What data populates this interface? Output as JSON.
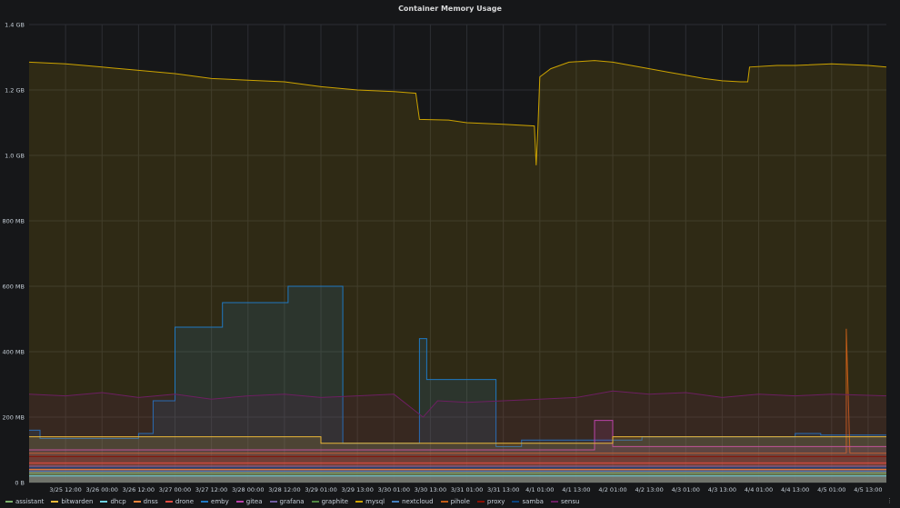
{
  "panel": {
    "title": "Container Memory Usage"
  },
  "colors": {
    "background": "#161719",
    "grid": "#2c2e33",
    "axis_text": "#c7d0d9"
  },
  "chart_data": {
    "type": "line",
    "title": "Container Memory Usage",
    "xlabel": "",
    "ylabel": "",
    "fill": true,
    "grid": true,
    "legend_placement": "bottom",
    "x_ticks": [
      "3/25 12:00",
      "3/26 00:00",
      "3/26 12:00",
      "3/27 00:00",
      "3/27 12:00",
      "3/28 00:00",
      "3/28 12:00",
      "3/29 01:00",
      "3/29 13:00",
      "3/30 01:00",
      "3/30 13:00",
      "3/31 01:00",
      "3/31 13:00",
      "4/1 01:00",
      "4/1 13:00",
      "4/2 01:00",
      "4/2 13:00",
      "4/3 01:00",
      "4/3 13:00",
      "4/4 01:00",
      "4/4 13:00",
      "4/5 01:00",
      "4/5 13:00"
    ],
    "y_ticks": [
      {
        "label": "0 B",
        "value": 0
      },
      {
        "label": "200 MB",
        "value": 200
      },
      {
        "label": "400 MB",
        "value": 400
      },
      {
        "label": "600 MB",
        "value": 600
      },
      {
        "label": "800 MB",
        "value": 800
      },
      {
        "label": "1.0 GB",
        "value": 1000
      },
      {
        "label": "1.2 GB",
        "value": 1200
      },
      {
        "label": "1.4 GB",
        "value": 1400
      }
    ],
    "ylim": [
      0,
      1400
    ],
    "x_range": [
      0,
      23.5
    ],
    "series": [
      {
        "name": "assistant",
        "color": "#7eb26d",
        "points": [
          [
            0,
            30
          ],
          [
            23.5,
            30
          ]
        ]
      },
      {
        "name": "bitwarden",
        "color": "#eab839",
        "points": [
          [
            0,
            140
          ],
          [
            8,
            140
          ],
          [
            8,
            120
          ],
          [
            16,
            120
          ],
          [
            16,
            140
          ],
          [
            23.5,
            140
          ]
        ]
      },
      {
        "name": "dhcp",
        "color": "#6ed0e0",
        "points": [
          [
            0,
            20
          ],
          [
            23.5,
            20
          ]
        ]
      },
      {
        "name": "dnss",
        "color": "#ef843c",
        "points": [
          [
            0,
            40
          ],
          [
            23.5,
            40
          ]
        ]
      },
      {
        "name": "drone",
        "color": "#e24d42",
        "points": [
          [
            0,
            60
          ],
          [
            23.5,
            60
          ]
        ]
      },
      {
        "name": "emby",
        "color": "#1f78c1",
        "points": [
          [
            0,
            160
          ],
          [
            0.3,
            160
          ],
          [
            0.3,
            135
          ],
          [
            3,
            135
          ],
          [
            3,
            150
          ],
          [
            3.4,
            150
          ],
          [
            3.4,
            250
          ],
          [
            4,
            250
          ],
          [
            4,
            475
          ],
          [
            5.3,
            475
          ],
          [
            5.3,
            550
          ],
          [
            7.1,
            550
          ],
          [
            7.1,
            600
          ],
          [
            8.6,
            600
          ],
          [
            8.6,
            120
          ],
          [
            10.7,
            120
          ],
          [
            10.7,
            440
          ],
          [
            10.9,
            440
          ],
          [
            10.9,
            315
          ],
          [
            12.8,
            315
          ],
          [
            12.8,
            110
          ],
          [
            13.5,
            110
          ],
          [
            13.5,
            130
          ],
          [
            16.8,
            130
          ],
          [
            16.8,
            140
          ],
          [
            21,
            140
          ],
          [
            21,
            150
          ],
          [
            21.7,
            150
          ],
          [
            21.7,
            145
          ],
          [
            23.5,
            145
          ]
        ]
      },
      {
        "name": "gitea",
        "color": "#ba43a9",
        "points": [
          [
            0,
            100
          ],
          [
            15.5,
            100
          ],
          [
            15.5,
            190
          ],
          [
            16,
            190
          ],
          [
            16,
            110
          ],
          [
            23.5,
            110
          ]
        ]
      },
      {
        "name": "grafana",
        "color": "#705da0",
        "points": [
          [
            0,
            50
          ],
          [
            23.5,
            50
          ]
        ]
      },
      {
        "name": "graphite",
        "color": "#508642",
        "points": [
          [
            0,
            25
          ],
          [
            23.5,
            25
          ]
        ]
      },
      {
        "name": "mysql",
        "color": "#cca300",
        "points": [
          [
            0,
            1285
          ],
          [
            1,
            1280
          ],
          [
            2,
            1270
          ],
          [
            3,
            1260
          ],
          [
            4,
            1250
          ],
          [
            5,
            1235
          ],
          [
            6,
            1230
          ],
          [
            7,
            1225
          ],
          [
            8,
            1210
          ],
          [
            9,
            1200
          ],
          [
            10,
            1195
          ],
          [
            10.6,
            1190
          ],
          [
            10.7,
            1110
          ],
          [
            11.5,
            1108
          ],
          [
            12,
            1100
          ],
          [
            13,
            1095
          ],
          [
            13.85,
            1090
          ],
          [
            13.9,
            970
          ],
          [
            13.95,
            1090
          ],
          [
            14,
            1240
          ],
          [
            14.3,
            1265
          ],
          [
            14.8,
            1285
          ],
          [
            15.5,
            1290
          ],
          [
            16,
            1285
          ],
          [
            16.5,
            1275
          ],
          [
            17,
            1265
          ],
          [
            17.5,
            1255
          ],
          [
            18,
            1245
          ],
          [
            18.5,
            1235
          ],
          [
            19,
            1228
          ],
          [
            19.5,
            1225
          ],
          [
            19.7,
            1225
          ],
          [
            19.75,
            1270
          ],
          [
            20.5,
            1275
          ],
          [
            21,
            1275
          ],
          [
            22,
            1280
          ],
          [
            23,
            1275
          ],
          [
            23.5,
            1270
          ]
        ]
      },
      {
        "name": "nextcloud",
        "color": "#447ebc",
        "points": [
          [
            0,
            35
          ],
          [
            23.5,
            35
          ]
        ]
      },
      {
        "name": "pihole",
        "color": "#c15c17",
        "points": [
          [
            0,
            90
          ],
          [
            22.4,
            90
          ],
          [
            22.4,
            470
          ],
          [
            22.45,
            280
          ],
          [
            22.5,
            90
          ],
          [
            23.5,
            90
          ]
        ]
      },
      {
        "name": "proxy",
        "color": "#890f02",
        "points": [
          [
            0,
            80
          ],
          [
            23.5,
            80
          ]
        ]
      },
      {
        "name": "samba",
        "color": "#0a437c",
        "points": [
          [
            0,
            45
          ],
          [
            23.5,
            45
          ]
        ]
      },
      {
        "name": "sensu",
        "color": "#6d1f62",
        "points": [
          [
            0,
            270
          ],
          [
            1,
            265
          ],
          [
            2,
            275
          ],
          [
            3,
            260
          ],
          [
            4,
            270
          ],
          [
            5,
            255
          ],
          [
            6,
            265
          ],
          [
            7,
            270
          ],
          [
            8,
            260
          ],
          [
            9,
            265
          ],
          [
            10,
            270
          ],
          [
            10.8,
            200
          ],
          [
            11.2,
            250
          ],
          [
            12,
            245
          ],
          [
            13,
            250
          ],
          [
            14,
            255
          ],
          [
            15,
            260
          ],
          [
            16,
            280
          ],
          [
            17,
            270
          ],
          [
            18,
            275
          ],
          [
            19,
            260
          ],
          [
            20,
            270
          ],
          [
            21,
            265
          ],
          [
            22,
            270
          ],
          [
            23.5,
            265
          ]
        ]
      }
    ]
  }
}
